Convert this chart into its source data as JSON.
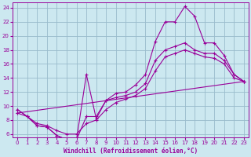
{
  "xlabel": "Windchill (Refroidissement éolien,°C)",
  "background_color": "#cce8f0",
  "grid_color": "#99bbcc",
  "line_color": "#990099",
  "xlim": [
    -0.5,
    23.5
  ],
  "ylim": [
    5.5,
    24.8
  ],
  "xticks": [
    0,
    1,
    2,
    3,
    4,
    5,
    6,
    7,
    8,
    9,
    10,
    11,
    12,
    13,
    14,
    15,
    16,
    17,
    18,
    19,
    20,
    21,
    22,
    23
  ],
  "yticks": [
    6,
    8,
    10,
    12,
    14,
    16,
    18,
    20,
    22,
    24
  ],
  "line1_x": [
    0,
    1,
    2,
    3,
    4,
    5,
    6,
    7,
    8,
    9,
    10,
    11,
    12,
    13,
    14,
    15,
    16,
    17,
    18,
    19,
    20,
    21,
    22,
    23
  ],
  "line1_y": [
    9.5,
    8.5,
    7.2,
    7.0,
    5.8,
    5.2,
    5.2,
    14.5,
    8.2,
    10.8,
    11.8,
    12.0,
    13.0,
    14.5,
    19.2,
    22.0,
    22.0,
    24.2,
    22.8,
    19.0,
    19.0,
    17.2,
    14.5,
    13.5
  ],
  "line2_x": [
    0,
    1,
    2,
    3,
    4,
    5,
    6,
    7,
    8,
    9,
    10,
    11,
    12,
    13,
    14,
    15,
    16,
    17,
    18,
    19,
    20,
    21,
    22,
    23
  ],
  "line2_y": [
    9.5,
    8.5,
    7.2,
    7.0,
    5.8,
    5.2,
    5.2,
    8.5,
    8.5,
    10.8,
    11.2,
    11.5,
    12.0,
    13.2,
    16.5,
    18.0,
    18.5,
    19.0,
    18.0,
    17.5,
    17.5,
    16.5,
    14.5,
    13.5
  ],
  "line3_x": [
    0,
    23
  ],
  "line3_y": [
    9.0,
    13.5
  ],
  "line4_x": [
    0,
    1,
    2,
    3,
    4,
    5,
    6,
    7,
    8,
    9,
    10,
    11,
    12,
    13,
    14,
    15,
    16,
    17,
    18,
    19,
    20,
    21,
    22,
    23
  ],
  "line4_y": [
    9.0,
    8.5,
    7.5,
    7.2,
    6.5,
    6.0,
    6.0,
    7.5,
    8.0,
    9.5,
    10.5,
    11.0,
    11.5,
    12.5,
    15.0,
    17.0,
    17.5,
    18.0,
    17.5,
    17.0,
    16.8,
    16.0,
    14.0,
    13.5
  ]
}
